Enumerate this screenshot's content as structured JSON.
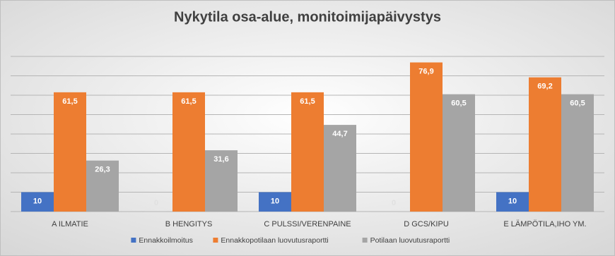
{
  "chart_data": {
    "type": "bar",
    "title": "Nykytila osa-alue, monitoimijapäivystys",
    "categories": [
      "A ILMATIE",
      "B HENGITYS",
      "C PULSSI/VERENPAINE",
      "D GCS/KIPU",
      "E LÄMPÖTILA,IHO YM."
    ],
    "series": [
      {
        "name": "Ennakkoilmoitus",
        "color": "#4472c4",
        "values": [
          10,
          0,
          10,
          0,
          10
        ],
        "value_labels": [
          "10",
          "0",
          "10",
          "0",
          "10"
        ]
      },
      {
        "name": "Ennakkopotilaan luovutusraportti",
        "color": "#ed7d31",
        "values": [
          61.5,
          61.5,
          61.5,
          76.9,
          69.2
        ],
        "value_labels": [
          "61,5",
          "61,5",
          "61,5",
          "76,9",
          "69,2"
        ]
      },
      {
        "name": "Potilaan luovutusraportti",
        "color": "#a5a5a5",
        "values": [
          26.3,
          31.6,
          44.7,
          60.5,
          60.5
        ],
        "value_labels": [
          "26,3",
          "31,6",
          "44,7",
          "60,5",
          "60,5"
        ]
      }
    ],
    "ylim": [
      0,
      80
    ],
    "yticks": [
      0,
      10,
      20,
      30,
      40,
      50,
      60,
      70,
      80
    ],
    "grid": true,
    "legend": "bottom"
  }
}
